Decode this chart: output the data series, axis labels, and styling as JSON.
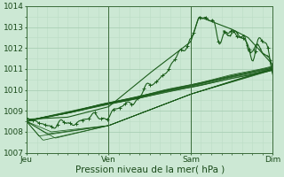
{
  "background_color": "#cce8d4",
  "plot_bg_color": "#cce8d4",
  "grid_major_color": "#aacfb5",
  "grid_minor_color": "#bbddc5",
  "line_color": "#1a5c1a",
  "xlabel": "Pression niveau de la mer( hPa )",
  "xlabel_fontsize": 7.5,
  "tick_fontsize": 6.5,
  "ylim": [
    1007,
    1014
  ],
  "yticks": [
    1007,
    1008,
    1009,
    1010,
    1011,
    1012,
    1013,
    1014
  ],
  "xtick_labels": [
    "Jeu",
    "Ven",
    "Sam",
    "Dim"
  ],
  "xtick_positions": [
    0,
    1,
    2,
    3
  ],
  "day_ticks": [
    0.0,
    1.0,
    2.0,
    3.0
  ]
}
